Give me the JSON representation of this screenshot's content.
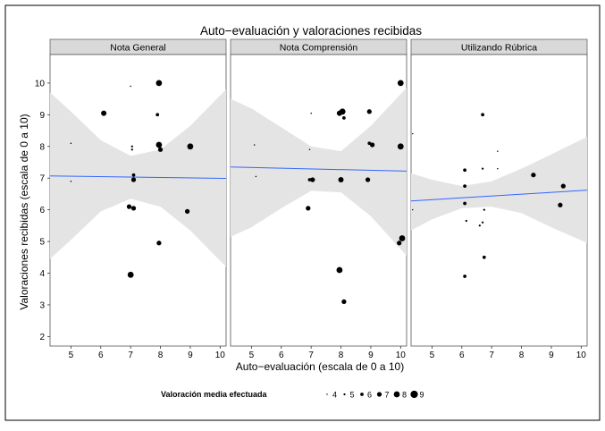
{
  "chart_data": {
    "type": "scatter",
    "title": "Auto−evaluación y valoraciones recibidas",
    "xlabel": "Auto−evaluación (escala de 0 a 10)",
    "ylabel": "Valoraciones recibidas (escala de 0 a 10)",
    "xlim": [
      4.3,
      10.2
    ],
    "ylim": [
      1.7,
      10.9
    ],
    "x_ticks": [
      "5",
      "6",
      "7",
      "8",
      "9",
      "10"
    ],
    "y_ticks": [
      "2",
      "3",
      "4",
      "5",
      "6",
      "7",
      "8",
      "9",
      "10"
    ],
    "grid": false,
    "facet_bg": "#ffffff",
    "strip_bg": "#d9d9d9",
    "band_color": "#e4e4e4",
    "line_color": "#3366ff",
    "legend": {
      "position": "bottom",
      "title": "Valoración media efectuada",
      "levels": [
        4,
        5,
        6,
        7,
        8,
        9
      ],
      "labels": [
        "4",
        "5",
        "6",
        "7",
        "8",
        "9"
      ]
    },
    "panels": [
      {
        "name": "Nota General",
        "fit": {
          "x": [
            4.3,
            10.2
          ],
          "y": [
            7.07,
            6.99
          ]
        },
        "band": {
          "x": [
            4.3,
            5.0,
            6.0,
            7.0,
            8.0,
            9.0,
            10.2
          ],
          "lower": [
            4.45,
            5.05,
            5.95,
            6.35,
            6.1,
            5.35,
            4.2
          ],
          "upper": [
            9.7,
            9.1,
            8.2,
            7.7,
            7.9,
            8.65,
            9.8
          ]
        },
        "points": [
          {
            "x": 5.0,
            "y": 8.1,
            "size": 4.5
          },
          {
            "x": 5.0,
            "y": 6.9,
            "size": 4.5
          },
          {
            "x": 6.1,
            "y": 9.05,
            "size": 7.5
          },
          {
            "x": 7.0,
            "y": 9.9,
            "size": 4.5
          },
          {
            "x": 7.05,
            "y": 8.0,
            "size": 5
          },
          {
            "x": 7.05,
            "y": 7.9,
            "size": 5
          },
          {
            "x": 7.1,
            "y": 7.1,
            "size": 6
          },
          {
            "x": 7.1,
            "y": 6.95,
            "size": 7
          },
          {
            "x": 6.95,
            "y": 6.1,
            "size": 7
          },
          {
            "x": 7.1,
            "y": 6.05,
            "size": 7
          },
          {
            "x": 7.0,
            "y": 3.95,
            "size": 8
          },
          {
            "x": 7.95,
            "y": 10.0,
            "size": 8
          },
          {
            "x": 7.9,
            "y": 9.0,
            "size": 6
          },
          {
            "x": 7.95,
            "y": 8.05,
            "size": 8
          },
          {
            "x": 8.0,
            "y": 7.9,
            "size": 7
          },
          {
            "x": 7.95,
            "y": 4.95,
            "size": 7
          },
          {
            "x": 9.0,
            "y": 8.0,
            "size": 8
          },
          {
            "x": 8.9,
            "y": 5.95,
            "size": 7
          }
        ]
      },
      {
        "name": "Nota Comprensión",
        "fit": {
          "x": [
            4.3,
            10.2
          ],
          "y": [
            7.35,
            7.22
          ]
        },
        "band": {
          "x": [
            4.3,
            5.0,
            6.0,
            7.0,
            8.0,
            9.0,
            10.2
          ],
          "lower": [
            5.15,
            5.45,
            6.05,
            6.6,
            6.55,
            5.8,
            4.55
          ],
          "upper": [
            9.5,
            9.2,
            8.6,
            8.0,
            7.85,
            8.65,
            9.85
          ]
        },
        "points": [
          {
            "x": 5.1,
            "y": 8.05,
            "size": 4.5
          },
          {
            "x": 5.15,
            "y": 7.05,
            "size": 4.5
          },
          {
            "x": 7.0,
            "y": 9.05,
            "size": 4.5
          },
          {
            "x": 6.95,
            "y": 7.9,
            "size": 4.5
          },
          {
            "x": 6.95,
            "y": 6.95,
            "size": 6
          },
          {
            "x": 7.05,
            "y": 6.95,
            "size": 7
          },
          {
            "x": 6.9,
            "y": 6.05,
            "size": 7
          },
          {
            "x": 7.95,
            "y": 9.05,
            "size": 7.5
          },
          {
            "x": 8.05,
            "y": 9.1,
            "size": 8
          },
          {
            "x": 8.1,
            "y": 8.9,
            "size": 6
          },
          {
            "x": 8.0,
            "y": 6.95,
            "size": 7.5
          },
          {
            "x": 7.95,
            "y": 4.1,
            "size": 8
          },
          {
            "x": 8.1,
            "y": 3.1,
            "size": 7
          },
          {
            "x": 8.95,
            "y": 9.1,
            "size": 7
          },
          {
            "x": 8.95,
            "y": 8.1,
            "size": 6
          },
          {
            "x": 9.05,
            "y": 8.05,
            "size": 7
          },
          {
            "x": 8.9,
            "y": 6.95,
            "size": 7
          },
          {
            "x": 10.0,
            "y": 10.0,
            "size": 8
          },
          {
            "x": 10.0,
            "y": 8.0,
            "size": 8
          },
          {
            "x": 10.05,
            "y": 5.1,
            "size": 8
          },
          {
            "x": 9.95,
            "y": 4.95,
            "size": 7
          }
        ]
      },
      {
        "name": "Utilizando Rúbrica",
        "fit": {
          "x": [
            4.3,
            10.2
          ],
          "y": [
            6.28,
            6.62
          ]
        },
        "band": {
          "x": [
            4.3,
            5.0,
            6.0,
            7.0,
            8.0,
            9.0,
            10.2
          ],
          "lower": [
            5.35,
            5.7,
            6.05,
            6.1,
            5.9,
            5.45,
            4.95
          ],
          "upper": [
            7.15,
            6.95,
            6.75,
            6.9,
            7.3,
            7.75,
            8.3
          ]
        },
        "points": [
          {
            "x": 4.35,
            "y": 8.4,
            "size": 4
          },
          {
            "x": 4.35,
            "y": 6.0,
            "size": 4
          },
          {
            "x": 6.1,
            "y": 7.25,
            "size": 6
          },
          {
            "x": 6.1,
            "y": 6.75,
            "size": 6
          },
          {
            "x": 6.1,
            "y": 6.2,
            "size": 6
          },
          {
            "x": 6.15,
            "y": 5.65,
            "size": 5
          },
          {
            "x": 6.1,
            "y": 3.9,
            "size": 6
          },
          {
            "x": 6.7,
            "y": 9.0,
            "size": 6
          },
          {
            "x": 6.7,
            "y": 7.3,
            "size": 5
          },
          {
            "x": 6.6,
            "y": 5.5,
            "size": 5
          },
          {
            "x": 6.7,
            "y": 5.6,
            "size": 5
          },
          {
            "x": 6.75,
            "y": 6.0,
            "size": 5
          },
          {
            "x": 6.75,
            "y": 4.5,
            "size": 6
          },
          {
            "x": 7.2,
            "y": 7.85,
            "size": 4.5
          },
          {
            "x": 7.2,
            "y": 7.3,
            "size": 4.5
          },
          {
            "x": 8.4,
            "y": 7.1,
            "size": 7
          },
          {
            "x": 9.4,
            "y": 6.75,
            "size": 7
          },
          {
            "x": 9.3,
            "y": 6.15,
            "size": 7
          }
        ]
      }
    ]
  }
}
